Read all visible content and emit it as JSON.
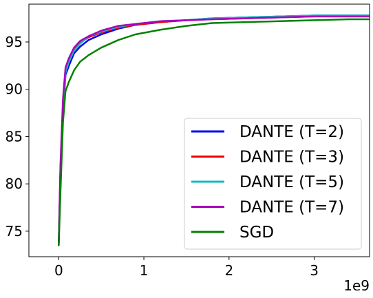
{
  "chart_data": {
    "type": "line",
    "title": "",
    "xlabel": "",
    "ylabel": "",
    "x_axis_multiplier": "1e9",
    "xlim": [
      -0.35,
      3.65
    ],
    "ylim": [
      72.3,
      99.0
    ],
    "x_ticks": [
      0,
      1,
      2,
      3
    ],
    "x_tick_labels": [
      "0",
      "1",
      "2",
      "3"
    ],
    "y_ticks": [
      75,
      80,
      85,
      90,
      95
    ],
    "y_tick_labels": [
      "75",
      "80",
      "85",
      "90",
      "95"
    ],
    "grid": false,
    "legend_position": "lower-right",
    "series": [
      {
        "name": "DANTE (T=2)",
        "color": "#0000ee",
        "x": [
          0,
          0.02,
          0.05,
          0.08,
          0.12,
          0.18,
          0.25,
          0.35,
          0.5,
          0.7,
          0.9,
          1.2,
          1.5,
          1.8,
          2.2,
          2.6,
          3.0,
          3.4,
          3.65
        ],
        "y": [
          73.6,
          80.5,
          87.5,
          91.5,
          92.5,
          93.8,
          94.5,
          95.2,
          95.8,
          96.4,
          96.8,
          97.1,
          97.3,
          97.5,
          97.6,
          97.7,
          97.8,
          97.8,
          97.8
        ]
      },
      {
        "name": "DANTE (T=3)",
        "color": "#ee0000",
        "x": [
          0,
          0.02,
          0.05,
          0.08,
          0.12,
          0.18,
          0.25,
          0.35,
          0.5,
          0.7,
          0.9,
          1.2,
          1.5,
          1.8,
          2.2,
          2.6,
          3.0,
          3.4,
          3.65
        ],
        "y": [
          73.8,
          81.5,
          88.5,
          92.0,
          93.0,
          94.2,
          94.9,
          95.5,
          96.0,
          96.5,
          96.8,
          97.1,
          97.3,
          97.4,
          97.5,
          97.6,
          97.7,
          97.7,
          97.7
        ]
      },
      {
        "name": "DANTE (T=5)",
        "color": "#11bbbb",
        "x": [
          0,
          0.02,
          0.05,
          0.08,
          0.12,
          0.18,
          0.25,
          0.35,
          0.5,
          0.7,
          0.9,
          1.2,
          1.5,
          1.8,
          2.2,
          2.6,
          3.0,
          3.4,
          3.65
        ],
        "y": [
          73.7,
          81.0,
          88.0,
          91.8,
          92.9,
          94.1,
          94.8,
          95.6,
          96.1,
          96.6,
          96.9,
          97.2,
          97.3,
          97.5,
          97.6,
          97.7,
          97.8,
          97.8,
          97.8
        ]
      },
      {
        "name": "DANTE (T=7)",
        "color": "#aa00bb",
        "x": [
          0,
          0.02,
          0.05,
          0.08,
          0.12,
          0.18,
          0.25,
          0.35,
          0.5,
          0.7,
          0.9,
          1.2,
          1.5,
          1.8,
          2.2,
          2.6,
          3.0,
          3.4,
          3.65
        ],
        "y": [
          73.5,
          82.0,
          89.0,
          92.3,
          93.3,
          94.4,
          95.1,
          95.6,
          96.2,
          96.7,
          96.9,
          97.2,
          97.3,
          97.4,
          97.5,
          97.6,
          97.7,
          97.7,
          97.7
        ]
      },
      {
        "name": "SGD",
        "color": "#008000",
        "x": [
          0,
          0.02,
          0.05,
          0.08,
          0.12,
          0.18,
          0.25,
          0.35,
          0.5,
          0.7,
          0.9,
          1.2,
          1.5,
          1.8,
          2.2,
          2.6,
          3.0,
          3.4,
          3.65
        ],
        "y": [
          73.5,
          79.0,
          86.5,
          89.8,
          90.8,
          92.0,
          92.9,
          93.6,
          94.4,
          95.2,
          95.8,
          96.3,
          96.7,
          97.0,
          97.1,
          97.2,
          97.3,
          97.4,
          97.4
        ]
      }
    ]
  }
}
